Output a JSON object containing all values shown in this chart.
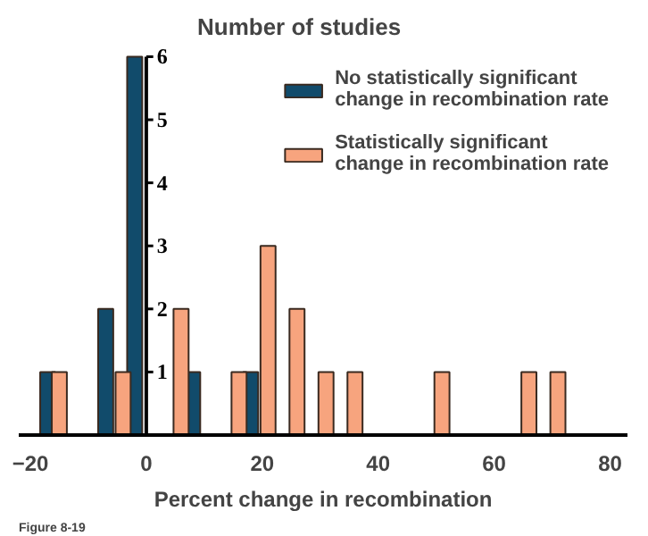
{
  "chart_data": {
    "type": "bar",
    "ylabel": "Number of studies",
    "xlabel": "Percent change in recombination",
    "series": [
      {
        "name": "No statistically significant change in recombination rate",
        "color": "#114b6b",
        "x": [
          -17,
          -7,
          -2,
          8,
          18
        ],
        "values": [
          1,
          2,
          6,
          1,
          1
        ]
      },
      {
        "name": "Statistically significant change in recombination rate",
        "color": "#f7a47e",
        "x": [
          -15,
          -4,
          6,
          16,
          21,
          26,
          31,
          36,
          51,
          66,
          71
        ],
        "values": [
          1,
          1,
          2,
          1,
          3,
          2,
          1,
          1,
          1,
          1,
          1
        ]
      }
    ],
    "xlim": [
      -22,
      83
    ],
    "xticks": [
      -20,
      0,
      20,
      40,
      60,
      80
    ],
    "ylim": [
      0,
      6
    ],
    "yticks": [
      1,
      2,
      3,
      4,
      5,
      6
    ],
    "legend": "top right",
    "grid": false,
    "annotations": [
      "Figure 8-19"
    ]
  }
}
